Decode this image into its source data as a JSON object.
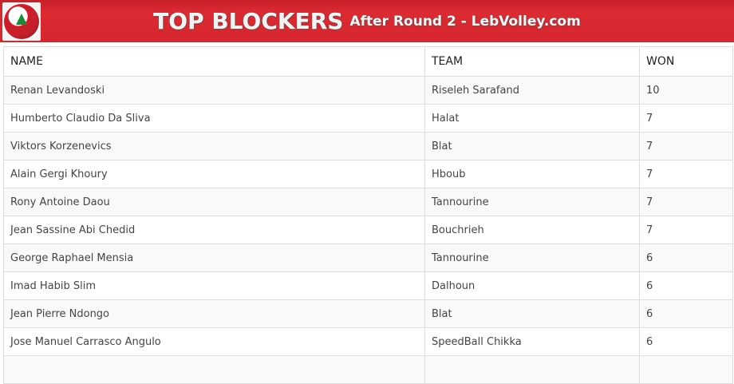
{
  "header": {
    "title": "TOP BLOCKERS",
    "subtitle": "After Round 2 - LebVolley.com",
    "color": "#d8262f"
  },
  "table": {
    "columns": [
      "NAME",
      "TEAM",
      "WON"
    ],
    "rows": [
      [
        "Renan Levandoski",
        "Riseleh Sarafand",
        "10"
      ],
      [
        "Humberto Claudio Da Sliva",
        "Halat",
        "7"
      ],
      [
        "Viktors Korzenevics",
        "Blat",
        "7"
      ],
      [
        "Alain Gergi Khoury",
        "Hboub",
        "7"
      ],
      [
        "Rony Antoine Daou",
        "Tannourine",
        "7"
      ],
      [
        "Jean Sassine Abi Chedid",
        "Bouchrieh",
        "7"
      ],
      [
        "George Raphael Mensia",
        "Tannourine",
        "6"
      ],
      [
        "Imad Habib Slim",
        "Dalhoun",
        "6"
      ],
      [
        "Jean Pierre Ndongo",
        "Blat",
        "6"
      ],
      [
        "Jose Manuel Carrasco Angulo",
        "SpeedBall Chikka",
        "6"
      ],
      [
        "",
        "",
        ""
      ]
    ]
  }
}
